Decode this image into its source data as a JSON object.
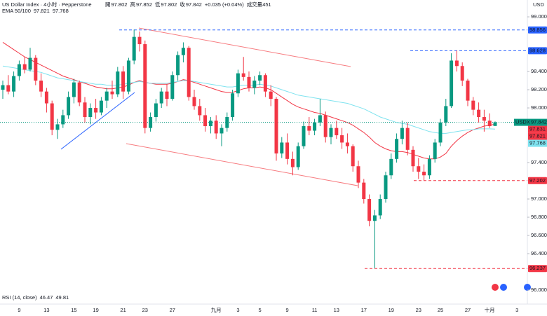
{
  "chart_data": {
    "type": "candlestick",
    "title": "US Dollar Index · 4小时 · Pepperstone",
    "ohlc_labels": [
      "開",
      "高",
      "低",
      "收"
    ],
    "change": "+0.035 (+0.04%)",
    "volume_label": "成交量",
    "volume": 451,
    "currency": "USD",
    "symbol": "USDX",
    "indicator": "EMA 50/100",
    "rsi": {
      "label": "RSI (14, close)",
      "values": [
        46.47,
        49.81
      ],
      "colors": [
        "#7e57c2",
        "#f5d76e"
      ]
    },
    "up_color": "#089981",
    "down_color": "#f23645",
    "categories": [
      null,
      null,
      null,
      "9",
      null,
      null,
      null,
      null,
      "13",
      null,
      null,
      null,
      null,
      "15",
      null,
      null,
      null,
      "19",
      null,
      null,
      null,
      null,
      "21",
      null,
      null,
      null,
      "23",
      null,
      null,
      null,
      null,
      "27",
      null,
      null,
      null,
      null,
      null,
      null,
      null,
      "九月",
      null,
      null,
      null,
      "3",
      null,
      null,
      null,
      "5",
      null,
      null,
      null,
      null,
      "9",
      null,
      null,
      null,
      null,
      "11",
      null,
      null,
      null,
      "13",
      null,
      null,
      null,
      null,
      "17",
      null,
      null,
      null,
      null,
      "19",
      null,
      null,
      null,
      null,
      "23",
      null,
      null,
      null,
      "25",
      null,
      null,
      null,
      null,
      "27",
      null,
      null,
      null,
      "十月",
      null,
      null,
      null,
      null,
      "3"
    ],
    "open": [
      98.2,
      98.25,
      98.18,
      98.35,
      98.48,
      98.42,
      98.55,
      98.3,
      98.18,
      98.05,
      97.76,
      97.82,
      97.92,
      98.12,
      98.28,
      98.06,
      97.9,
      98.0,
      97.95,
      98.08,
      98.18,
      98.15,
      98.4,
      98.18,
      98.52,
      98.78,
      98.7,
      97.78,
      97.9,
      98.05,
      98.18,
      98.1,
      98.36,
      98.58,
      98.66,
      98.12,
      98.02,
      97.92,
      97.8,
      97.86,
      97.72,
      97.78,
      97.9,
      98.16,
      98.38,
      98.34,
      98.22,
      98.3,
      98.36,
      98.18,
      98.1,
      97.5,
      97.62,
      97.44,
      97.35,
      97.58,
      97.8,
      97.75,
      97.84,
      97.92,
      97.68,
      97.78,
      97.7,
      97.62,
      97.58,
      97.36,
      97.18,
      97.0,
      96.76,
      96.82,
      97.0,
      97.26,
      97.44,
      97.66,
      97.78,
      97.54,
      97.36,
      97.3,
      97.26,
      97.44,
      97.62,
      97.84,
      98.02,
      98.52,
      98.46,
      98.3,
      98.08,
      97.98,
      97.9,
      97.86,
      97.802,
      null,
      null,
      null,
      null
    ],
    "high": [
      98.3,
      98.36,
      98.4,
      98.52,
      98.56,
      98.66,
      98.58,
      98.38,
      98.22,
      98.08,
      97.88,
      97.98,
      98.18,
      98.32,
      98.3,
      98.12,
      98.05,
      98.1,
      98.12,
      98.22,
      98.3,
      98.45,
      98.46,
      98.55,
      98.86,
      98.84,
      98.74,
      97.95,
      98.1,
      98.22,
      98.26,
      98.4,
      98.62,
      98.72,
      98.68,
      98.2,
      98.1,
      98.0,
      97.9,
      97.92,
      97.82,
      97.95,
      98.2,
      98.42,
      98.56,
      98.4,
      98.35,
      98.4,
      98.38,
      98.25,
      98.12,
      97.68,
      97.72,
      97.52,
      97.62,
      97.85,
      97.9,
      97.88,
      98.1,
      97.96,
      97.82,
      97.86,
      97.78,
      97.72,
      97.6,
      97.42,
      97.22,
      97.05,
      96.88,
      97.05,
      97.3,
      97.5,
      97.72,
      97.86,
      97.84,
      97.58,
      97.45,
      97.38,
      97.48,
      97.66,
      97.88,
      98.1,
      98.6,
      98.63,
      98.5,
      98.32,
      98.12,
      98.06,
      97.98,
      97.94,
      97.852,
      null,
      null,
      null,
      null
    ],
    "low": [
      98.1,
      98.15,
      98.12,
      98.3,
      98.38,
      98.4,
      98.25,
      98.12,
      97.95,
      97.7,
      97.66,
      97.78,
      97.88,
      98.05,
      98.02,
      97.84,
      97.82,
      97.88,
      97.92,
      98.0,
      98.1,
      98.12,
      98.1,
      98.15,
      98.48,
      98.62,
      97.72,
      97.74,
      97.85,
      98.0,
      98.02,
      98.08,
      98.3,
      98.5,
      98.08,
      97.98,
      97.86,
      97.74,
      97.72,
      97.66,
      97.58,
      97.74,
      97.86,
      98.12,
      98.3,
      98.18,
      98.15,
      98.25,
      98.12,
      98.02,
      97.42,
      97.45,
      97.38,
      97.26,
      97.32,
      97.55,
      97.7,
      97.7,
      97.8,
      97.62,
      97.6,
      97.66,
      97.55,
      97.5,
      97.3,
      97.12,
      96.95,
      96.7,
      96.24,
      96.78,
      96.96,
      97.22,
      97.4,
      97.6,
      97.48,
      97.3,
      97.22,
      97.2,
      97.22,
      97.4,
      97.58,
      97.8,
      98.0,
      98.4,
      98.24,
      98.02,
      97.92,
      97.84,
      97.74,
      97.78,
      97.802,
      null,
      null,
      null,
      null
    ],
    "close": [
      98.25,
      98.18,
      98.35,
      98.48,
      98.42,
      98.55,
      98.3,
      98.18,
      98.05,
      97.76,
      97.82,
      97.92,
      98.12,
      98.28,
      98.06,
      97.9,
      98.0,
      97.95,
      98.08,
      98.18,
      98.15,
      98.4,
      98.18,
      98.52,
      98.78,
      98.7,
      97.78,
      97.9,
      98.05,
      98.18,
      98.1,
      98.36,
      98.58,
      98.66,
      98.12,
      98.02,
      97.92,
      97.8,
      97.86,
      97.72,
      97.78,
      97.9,
      98.16,
      98.38,
      98.34,
      98.22,
      98.3,
      98.36,
      98.18,
      98.1,
      97.5,
      97.62,
      97.44,
      97.35,
      97.58,
      97.8,
      97.75,
      97.84,
      97.92,
      97.68,
      97.78,
      97.7,
      97.62,
      97.58,
      97.36,
      97.18,
      97.0,
      96.76,
      96.82,
      97.0,
      97.26,
      97.44,
      97.66,
      97.78,
      97.54,
      97.36,
      97.3,
      97.26,
      97.44,
      97.62,
      97.84,
      98.02,
      98.52,
      98.46,
      98.3,
      98.08,
      97.98,
      97.9,
      97.86,
      97.8,
      97.842,
      null,
      null,
      null,
      null
    ],
    "series": [
      {
        "color": "#f23645",
        "values": [
          98.72,
          98.68,
          98.64,
          98.6,
          98.56,
          98.53,
          98.5,
          98.47,
          98.44,
          98.41,
          98.38,
          98.35,
          98.33,
          98.31,
          98.29,
          98.27,
          98.25,
          98.23,
          98.22,
          98.21,
          98.21,
          98.22,
          98.23,
          98.25,
          98.28,
          98.3,
          98.28,
          98.27,
          98.26,
          98.26,
          98.26,
          98.27,
          98.29,
          98.31,
          98.3,
          98.28,
          98.26,
          98.24,
          98.22,
          98.2,
          98.18,
          98.17,
          98.17,
          98.19,
          98.21,
          98.22,
          98.22,
          98.23,
          98.22,
          98.2,
          98.16,
          98.12,
          98.08,
          98.04,
          98.01,
          97.99,
          97.97,
          97.95,
          97.94,
          97.92,
          97.9,
          97.88,
          97.86,
          97.84,
          97.81,
          97.77,
          97.73,
          97.68,
          97.62,
          97.58,
          97.55,
          97.53,
          97.52,
          97.52,
          97.51,
          97.49,
          97.47,
          97.45,
          97.44,
          97.44,
          97.46,
          97.5,
          97.58,
          97.64,
          97.69,
          97.73,
          97.76,
          97.78,
          97.8,
          97.81,
          97.821,
          null,
          null,
          null,
          null
        ]
      },
      {
        "color": "#7fe3ef",
        "values": [
          98.46,
          98.45,
          98.44,
          98.43,
          98.42,
          98.41,
          98.4,
          98.39,
          98.37,
          98.35,
          98.33,
          98.32,
          98.31,
          98.3,
          98.29,
          98.28,
          98.27,
          98.26,
          98.26,
          98.25,
          98.25,
          98.25,
          98.26,
          98.27,
          98.28,
          98.29,
          98.28,
          98.27,
          98.27,
          98.27,
          98.27,
          98.28,
          98.29,
          98.3,
          98.3,
          98.29,
          98.28,
          98.27,
          98.26,
          98.25,
          98.24,
          98.23,
          98.23,
          98.24,
          98.25,
          98.25,
          98.25,
          98.26,
          98.25,
          98.24,
          98.22,
          98.2,
          98.18,
          98.16,
          98.14,
          98.13,
          98.12,
          98.11,
          98.1,
          98.09,
          98.08,
          98.07,
          98.06,
          98.05,
          98.03,
          98.01,
          97.99,
          97.96,
          97.93,
          97.9,
          97.88,
          97.86,
          97.84,
          97.83,
          97.82,
          97.8,
          97.78,
          97.76,
          97.74,
          97.73,
          97.72,
          97.72,
          97.73,
          97.74,
          97.75,
          97.76,
          97.76,
          97.77,
          97.77,
          97.77,
          97.768,
          null,
          null,
          null,
          null
        ]
      }
    ],
    "levels": [
      {
        "value": 98.856,
        "color": "#2962ff"
      },
      {
        "value": 98.628,
        "color": "#2962ff"
      },
      {
        "value": 97.202,
        "color": "#f23645"
      },
      {
        "value": 96.237,
        "color": "#f23645"
      }
    ],
    "price_tags": [
      {
        "value": 97.831,
        "color": "#f23645"
      },
      {
        "value": 97.821,
        "color": "#f23645"
      },
      {
        "value": 97.768,
        "color": "#7fe3ef"
      }
    ],
    "ylim": [
      95.954,
      99.185
    ],
    "yticks": [
      {
        "value": 96,
        "label": "96.000"
      },
      {
        "value": 96.4,
        "label": "96.400"
      },
      {
        "value": 96.6,
        "label": "96.600"
      },
      {
        "value": 96.8,
        "label": "96.800"
      },
      {
        "value": 97,
        "label": "97.000"
      },
      {
        "value": 97.4,
        "label": "97.400"
      },
      {
        "value": 98,
        "label": "98.000"
      },
      {
        "value": 98.2,
        "label": "98.200"
      },
      {
        "value": 98.4,
        "label": "98.400"
      },
      {
        "value": 99,
        "label": "99.000"
      }
    ]
  }
}
